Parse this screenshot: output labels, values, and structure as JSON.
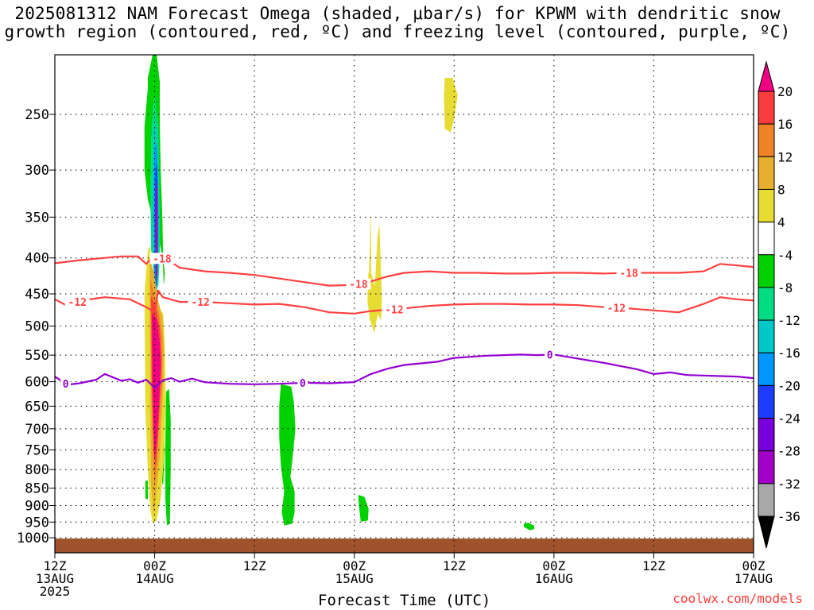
{
  "title_line1": "2025081312 NAM Forecast Omega (shaded, μbar/s) for KPWM with dendritic snow",
  "title_line2": "growth region (contoured, red, ºC) and freezing level (contoured, purple, ºC)",
  "credit": "coolwx.com/models",
  "chart_data": {
    "type": "heatmap",
    "xlabel": "Forecast Time (UTC)",
    "ylabel": "",
    "y_scale": "log (pressure, hPa, inverted)",
    "ylim": [
      1050,
      200
    ],
    "xlim": [
      0,
      84
    ],
    "x_ticks": [
      {
        "h": 0,
        "label": [
          "12Z",
          "13AUG",
          "2025"
        ]
      },
      {
        "h": 12,
        "label": [
          "00Z",
          "14AUG"
        ]
      },
      {
        "h": 24,
        "label": [
          "12Z"
        ]
      },
      {
        "h": 36,
        "label": [
          "00Z",
          "15AUG"
        ]
      },
      {
        "h": 48,
        "label": [
          "12Z"
        ]
      },
      {
        "h": 60,
        "label": [
          "00Z",
          "16AUG"
        ]
      },
      {
        "h": 72,
        "label": [
          "12Z"
        ]
      },
      {
        "h": 84,
        "label": [
          "00Z",
          "17AUG"
        ]
      }
    ],
    "y_ticks": [
      250,
      300,
      350,
      400,
      450,
      500,
      550,
      600,
      650,
      700,
      750,
      800,
      850,
      900,
      950,
      1000
    ],
    "grid": true,
    "colorbar": {
      "levels": [
        -36,
        -32,
        -28,
        -24,
        -20,
        -16,
        -12,
        -8,
        -4,
        4,
        8,
        12,
        16,
        20
      ],
      "labels": [
        "20",
        "16",
        "12",
        "8",
        "4",
        "-4",
        "-8",
        "-12",
        "-16",
        "-20",
        "-24",
        "-28",
        "-32",
        "-36"
      ],
      "colors": [
        "#000000",
        "#a8a8a8",
        "#a000c8",
        "#7800dc",
        "#1e3cff",
        "#0096ff",
        "#00c8c8",
        "#00dc82",
        "#00d200",
        "#ffffff",
        "#e6dc32",
        "#e6af2d",
        "#f08228",
        "#fa3c3c",
        "#f00082"
      ]
    },
    "omega_regions": [
      {
        "color": "#00d200",
        "t": [
          11.2,
          11.8,
          12.2,
          12.6,
          12.6,
          12.7,
          12.9,
          13.0,
          13.1,
          13.2,
          13.0,
          12.6,
          12.2,
          11.6,
          11.2,
          10.8,
          10.8,
          11.2
        ],
        "p": [
          222,
          205,
          205,
          225,
          260,
          300,
          350,
          400,
          435,
          420,
          400,
          380,
          370,
          345,
          330,
          300,
          260,
          230
        ]
      },
      {
        "color": "#00dc82",
        "t": [
          11.8,
          12.0,
          12.2,
          12.4,
          12.5,
          12.6,
          12.6,
          12.4,
          12.0,
          11.6,
          11.5,
          11.6
        ],
        "p": [
          245,
          235,
          248,
          260,
          300,
          350,
          400,
          440,
          425,
          390,
          320,
          270
        ]
      },
      {
        "color": "#00c8c8",
        "t": [
          11.9,
          12.1,
          12.3,
          12.4,
          12.5,
          12.4,
          12.2,
          12.0,
          11.8,
          11.8
        ],
        "p": [
          265,
          255,
          270,
          300,
          350,
          410,
          460,
          440,
          380,
          300
        ]
      },
      {
        "color": "#0096ff",
        "t": [
          12.0,
          12.2,
          12.3,
          12.4,
          12.4,
          12.3,
          12.1,
          12.0,
          11.9
        ],
        "p": [
          282,
          275,
          290,
          320,
          370,
          420,
          460,
          420,
          340
        ]
      },
      {
        "color": "#1e3cff",
        "t": [
          12.1,
          12.25,
          12.35,
          12.35,
          12.2,
          12.05
        ],
        "p": [
          300,
          295,
          340,
          400,
          440,
          360
        ]
      },
      {
        "color": "#a000c8",
        "t": [
          12.15,
          12.3,
          12.35,
          12.3,
          12.15,
          12.1
        ],
        "p": [
          310,
          320,
          360,
          420,
          430,
          370
        ]
      },
      {
        "color": "#00d200",
        "t": [
          13.4,
          13.7,
          13.9,
          13.9,
          13.8,
          13.5,
          13.3,
          13.3
        ],
        "p": [
          620,
          615,
          680,
          800,
          955,
          960,
          880,
          740
        ]
      },
      {
        "color": "#00d200",
        "t": [
          12.8,
          13.0,
          13.2,
          13.0,
          12.8
        ],
        "p": [
          700,
          690,
          750,
          840,
          820
        ]
      },
      {
        "color": "#00d200",
        "t": [
          10.9,
          11.15,
          11.15,
          10.9
        ],
        "p": [
          830,
          830,
          880,
          880
        ]
      },
      {
        "color": "#00d200",
        "t": [
          27.2,
          28.4,
          28.7,
          28.9,
          28.6,
          28.3,
          28.8,
          28.8,
          28.5,
          27.6,
          27.3,
          27.6,
          27.2,
          27.0,
          27.0
        ],
        "p": [
          605,
          610,
          640,
          700,
          760,
          820,
          860,
          920,
          955,
          960,
          920,
          860,
          790,
          720,
          650
        ]
      },
      {
        "color": "#00d200",
        "t": [
          36.5,
          37.2,
          37.7,
          37.6,
          36.8,
          36.6
        ],
        "p": [
          870,
          875,
          910,
          945,
          948,
          905
        ]
      },
      {
        "color": "#00d200",
        "t": [
          56.4,
          57.0,
          57.6,
          57.6,
          57.1,
          56.4
        ],
        "p": [
          955,
          953,
          962,
          972,
          975,
          965
        ]
      },
      {
        "color": "#e6dc32",
        "t": [
          11.2,
          11.5,
          11.3,
          11.6,
          11.9,
          12.4,
          13.0,
          13.2,
          13.3,
          13.1,
          12.7,
          12.2,
          11.8,
          11.5,
          11.2,
          10.9,
          10.8
        ],
        "p": [
          390,
          385,
          405,
          420,
          440,
          470,
          480,
          530,
          640,
          770,
          880,
          945,
          955,
          910,
          800,
          650,
          450
        ]
      },
      {
        "color": "#e6dc32",
        "t": [
          37.7,
          38.0,
          38.0,
          38.5,
          38.8,
          39.0,
          39.3,
          39.2,
          38.8,
          38.4,
          37.9,
          37.6,
          37.7
        ],
        "p": [
          455,
          350,
          420,
          440,
          375,
          360,
          460,
          490,
          480,
          510,
          490,
          460,
          420
        ]
      },
      {
        "color": "#e6dc32",
        "t": [
          46.9,
          47.8,
          48.4,
          48.0,
          47.6,
          46.9,
          46.8
        ],
        "p": [
          222,
          222,
          235,
          252,
          265,
          262,
          235
        ]
      },
      {
        "color": "#e6af2d",
        "t": [
          11.4,
          11.9,
          12.4,
          12.9,
          13.1,
          12.9,
          12.6,
          12.2,
          11.9,
          11.6,
          11.5
        ],
        "p": [
          400,
          420,
          460,
          485,
          540,
          650,
          760,
          860,
          930,
          840,
          620
        ]
      },
      {
        "color": "#f08228",
        "t": [
          11.5,
          12.0,
          12.5,
          12.9,
          12.9,
          12.5,
          12.2,
          12.0,
          11.8,
          11.6
        ],
        "p": [
          430,
          455,
          480,
          520,
          600,
          700,
          800,
          840,
          760,
          600
        ]
      },
      {
        "color": "#fa3c3c",
        "t": [
          11.6,
          12.1,
          12.6,
          12.8,
          12.6,
          12.3,
          12.1,
          11.9,
          11.7
        ],
        "p": [
          455,
          470,
          505,
          560,
          640,
          740,
          790,
          740,
          600
        ]
      },
      {
        "color": "#f00082",
        "t": [
          11.7,
          12.2,
          12.6,
          12.7,
          12.5,
          12.2,
          12.0,
          11.8
        ],
        "p": [
          480,
          490,
          530,
          575,
          640,
          730,
          770,
          620
        ]
      }
    ],
    "dgz_contours": [
      {
        "label": "-18",
        "t": [
          0,
          3,
          6,
          8,
          10,
          11,
          11.8,
          12.6,
          13.5,
          15,
          18,
          21,
          24,
          27,
          30,
          33,
          36,
          38,
          40,
          42,
          45,
          48,
          51,
          54,
          57,
          60,
          63,
          66,
          69,
          72,
          75,
          78,
          80,
          82,
          84
        ],
        "p": [
          407,
          403,
          400,
          398,
          398,
          408,
          398,
          400,
          402,
          413,
          418,
          420,
          423,
          428,
          433,
          438,
          437,
          432,
          425,
          420,
          418,
          420,
          420,
          421,
          421,
          420,
          420,
          421,
          420,
          420,
          420,
          418,
          408,
          410,
          412
        ],
        "label_h": [
          12.9,
          36.5,
          69
        ]
      },
      {
        "label": "-12",
        "t": [
          0,
          1.5,
          3,
          6,
          9,
          11,
          12,
          12.4,
          13,
          15,
          18,
          21,
          24,
          27,
          30,
          33,
          36,
          38,
          40,
          42,
          45,
          48,
          51,
          54,
          57,
          60,
          63,
          66,
          69,
          72,
          75,
          78,
          80,
          82,
          84
        ],
        "p": [
          458,
          468,
          460,
          455,
          458,
          470,
          478,
          445,
          455,
          462,
          462,
          464,
          466,
          465,
          470,
          478,
          480,
          476,
          474,
          472,
          468,
          466,
          465,
          465,
          466,
          466,
          467,
          470,
          472,
          475,
          478,
          465,
          455,
          458,
          460
        ],
        "label_h": [
          2.7,
          17.5,
          40.8,
          67.5
        ]
      },
      {
        "label": "0",
        "t": [
          0,
          1.5,
          3,
          5,
          6,
          8,
          9,
          10,
          11,
          12,
          13,
          14,
          15,
          16.5,
          18,
          21,
          24,
          27,
          30,
          33,
          36,
          38,
          40,
          42,
          44,
          46,
          48,
          50,
          52,
          54,
          56,
          58,
          60,
          62,
          64,
          66,
          68,
          70,
          72,
          74,
          76,
          78,
          80,
          82,
          84
        ],
        "p": [
          590,
          606,
          603,
          596,
          585,
          598,
          595,
          602,
          596,
          612,
          597,
          593,
          600,
          594,
          601,
          604,
          605,
          604,
          602,
          603,
          601,
          585,
          575,
          568,
          565,
          562,
          555,
          553,
          551,
          550,
          549,
          550,
          549,
          554,
          559,
          564,
          570,
          576,
          585,
          582,
          587,
          588,
          589,
          590,
          593
        ],
        "label_h": [
          1.3,
          29.8,
          59.5
        ]
      }
    ]
  }
}
